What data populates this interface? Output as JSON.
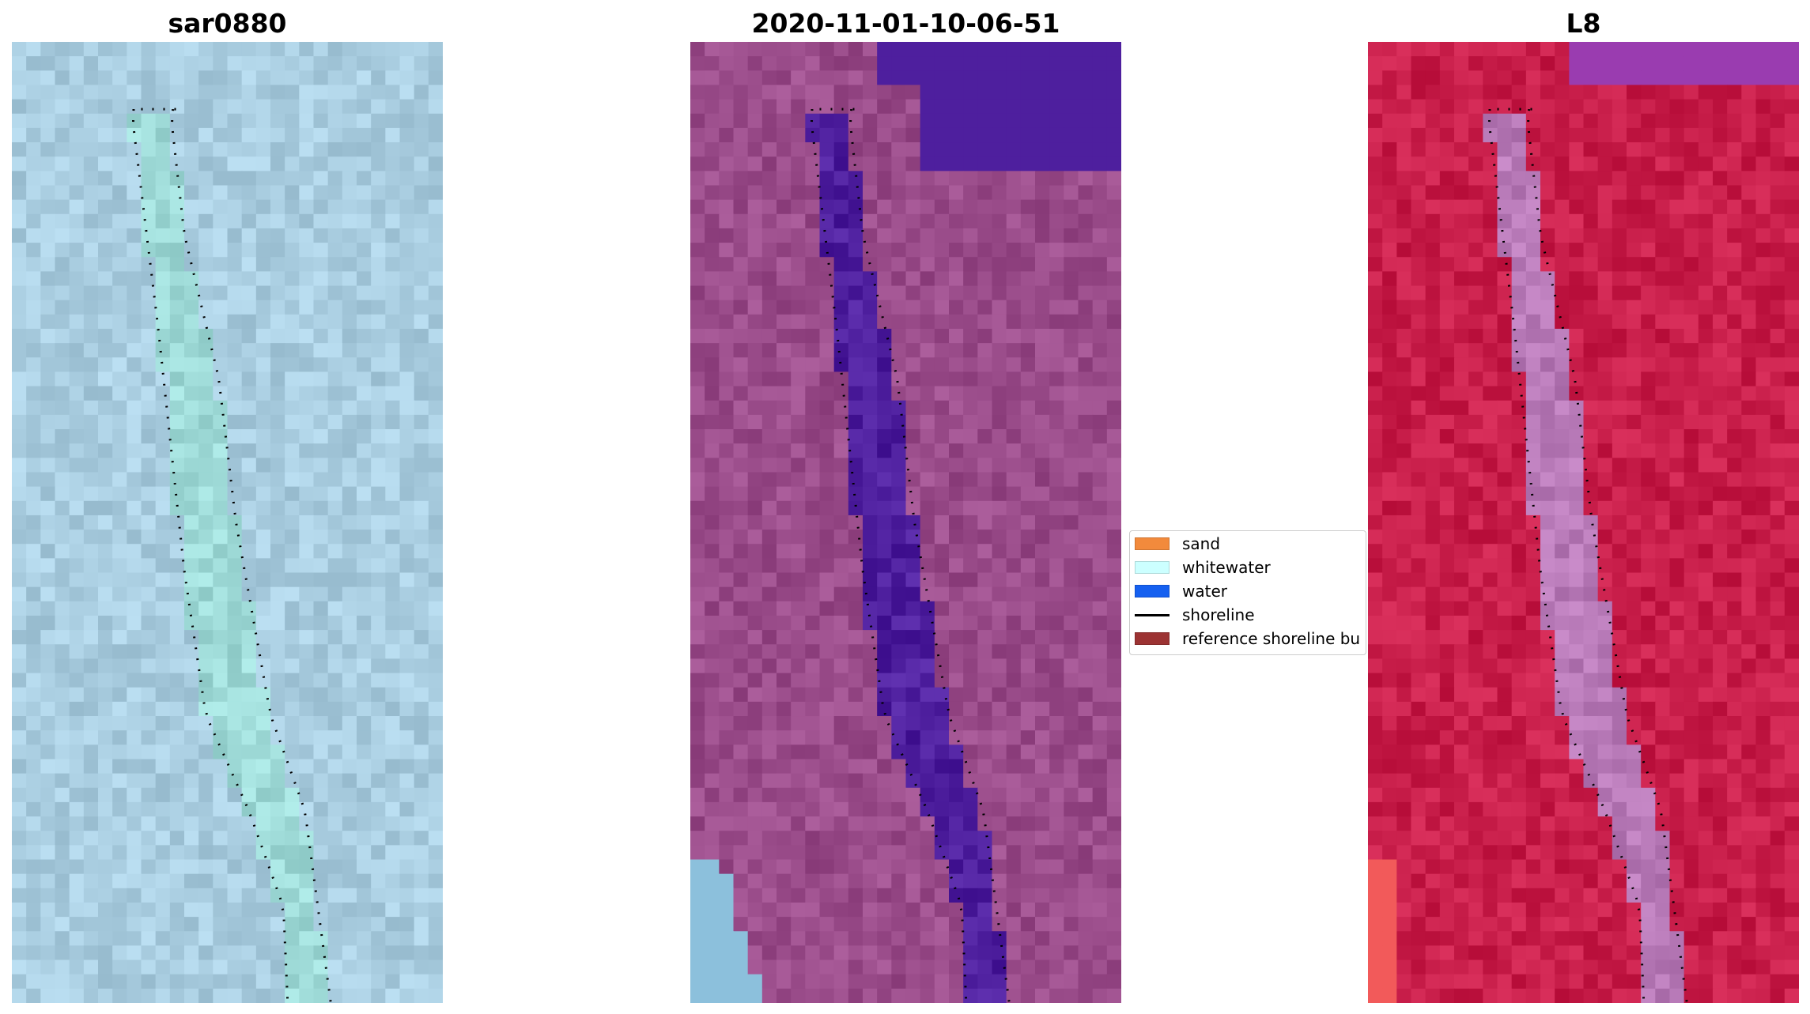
{
  "panels": [
    {
      "title": "sar0880"
    },
    {
      "title": "2020-11-01-10-06-51"
    },
    {
      "title": "L8"
    }
  ],
  "legend": {
    "items": [
      {
        "label": "sand",
        "color": "#f28a3c",
        "kind": "patch"
      },
      {
        "label": "whitewater",
        "color": "#ccffff",
        "kind": "patch"
      },
      {
        "label": "water",
        "color": "#1560f0",
        "kind": "patch"
      },
      {
        "label": "shoreline",
        "color": "#000000",
        "kind": "line"
      },
      {
        "label": "reference shoreline bu",
        "color": "#9c3333",
        "kind": "patch"
      }
    ]
  },
  "colors": {
    "sar_base": "#a9cde0",
    "sar_channel": "#9fdbd8",
    "classified_base": "#9a4c8a",
    "classified_water": "#4e1f9e",
    "classified_corner_water": "#8cc0dc",
    "l8_base": "#c81e4a",
    "l8_channel": "#b87ab8",
    "l8_corner": "#f25a5a"
  }
}
